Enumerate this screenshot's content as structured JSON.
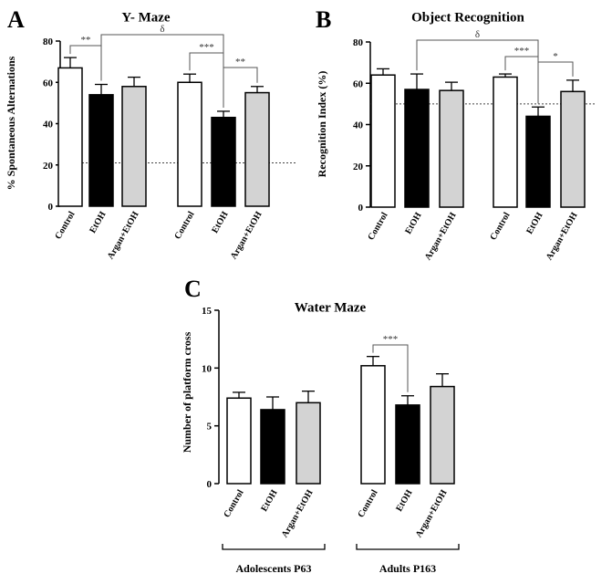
{
  "colors": {
    "control": "#ffffff",
    "etoh": "#000000",
    "argan": "#d3d3d3",
    "stroke": "#000000"
  },
  "chart_data": [
    {
      "panel": "A",
      "type": "bar",
      "title": "Y- Maze",
      "ylabel": "% Spontaneous Alternations",
      "ylim": [
        0,
        80
      ],
      "yticks": [
        0,
        20,
        40,
        60,
        80
      ],
      "reference_line": 21,
      "categories": [
        "Control",
        "EtOH",
        "Argan+EtOH",
        "Control",
        "EtOH",
        "Argan+EtOH"
      ],
      "values": [
        67,
        54,
        58,
        60,
        43,
        55
      ],
      "errors": [
        5,
        5,
        4.5,
        4,
        3,
        3
      ],
      "fills": [
        "control",
        "etoh",
        "argan",
        "control",
        "etoh",
        "argan"
      ],
      "brackets": [
        {
          "from": 0,
          "to": 1,
          "label": "**"
        },
        {
          "from": 1,
          "to": 4,
          "label": "δ"
        },
        {
          "from": 3,
          "to": 4,
          "label": "***"
        },
        {
          "from": 4,
          "to": 5,
          "label": "**"
        }
      ]
    },
    {
      "panel": "B",
      "type": "bar",
      "title": "Object Recognition",
      "ylabel": "Recognition Index (%)",
      "ylim": [
        0,
        80
      ],
      "yticks": [
        0,
        20,
        40,
        60,
        80
      ],
      "reference_line": 50,
      "categories": [
        "Control",
        "EtOH",
        "Argan+EtOH",
        "Control",
        "EtOH",
        "Argan+EtOH"
      ],
      "values": [
        64,
        57,
        56.5,
        63,
        44,
        56
      ],
      "errors": [
        3,
        7.5,
        4,
        1.5,
        4.5,
        5.5
      ],
      "fills": [
        "control",
        "etoh",
        "argan",
        "control",
        "etoh",
        "argan"
      ],
      "brackets": [
        {
          "from": 1,
          "to": 4,
          "label": "δ"
        },
        {
          "from": 3,
          "to": 4,
          "label": "***"
        },
        {
          "from": 4,
          "to": 5,
          "label": "*"
        }
      ]
    },
    {
      "panel": "C",
      "type": "bar",
      "title": "Water Maze",
      "ylabel": "Number of platform cross",
      "ylim": [
        0,
        15
      ],
      "yticks": [
        0,
        5,
        10,
        15
      ],
      "categories": [
        "Control",
        "EtOH",
        "Argan+EtOH",
        "Control",
        "EtOH",
        "Argan+EtOH"
      ],
      "values": [
        7.4,
        6.4,
        7.0,
        10.2,
        6.8,
        8.4
      ],
      "errors": [
        0.5,
        1.1,
        1.0,
        0.8,
        0.8,
        1.1
      ],
      "fills": [
        "control",
        "etoh",
        "argan",
        "control",
        "etoh",
        "argan"
      ],
      "brackets": [
        {
          "from": 3,
          "to": 4,
          "label": "***"
        }
      ],
      "groups": [
        "Adolescents P63",
        "Adults P163"
      ]
    }
  ]
}
